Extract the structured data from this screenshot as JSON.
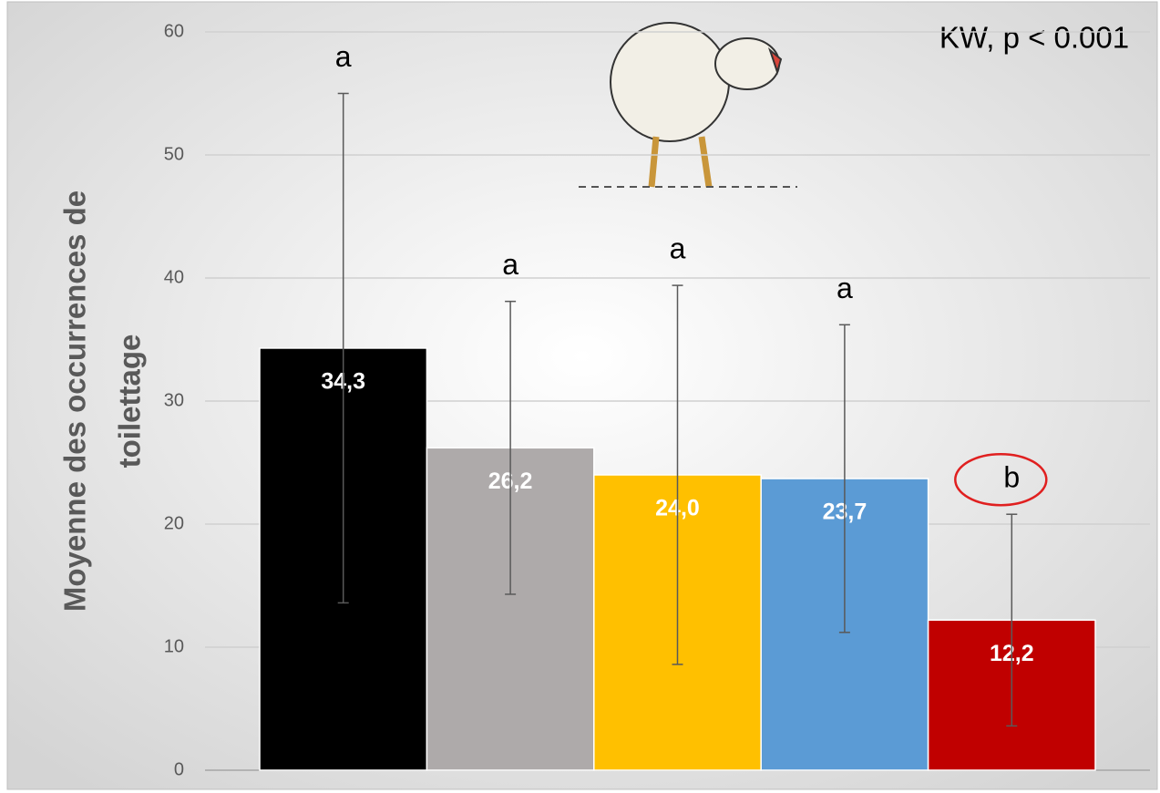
{
  "chart_data": {
    "type": "bar",
    "ylabel": [
      "Moyenne des occurrences de",
      "toilettage"
    ],
    "annotation": "KW, p < 0.001",
    "categories": [
      null,
      null,
      null,
      null,
      null
    ],
    "values": [
      34.3,
      26.2,
      24.0,
      23.7,
      12.2
    ],
    "value_labels": [
      "34,3",
      "26,2",
      "24,0",
      "23,7",
      "12,2"
    ],
    "errors": [
      20.7,
      11.9,
      15.4,
      12.5,
      8.6
    ],
    "letters": [
      "a",
      "a",
      "a",
      "a",
      "b"
    ],
    "colors": [
      "#000000",
      "#aeaaaa",
      "#ffc000",
      "#5b9bd5",
      "#c00000"
    ],
    "ylim": [
      0,
      60
    ],
    "yticks": [
      0,
      10,
      20,
      30,
      40,
      50,
      60
    ],
    "grid": true
  }
}
